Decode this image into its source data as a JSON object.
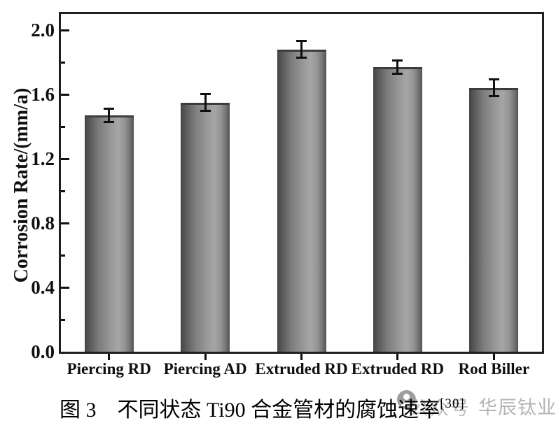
{
  "chart_data": {
    "type": "bar",
    "title": "",
    "categories": [
      "Piercing RD",
      "Piercing AD",
      "Extruded RD",
      "Extruded RD",
      "Rod Biller"
    ],
    "values": [
      1.47,
      1.55,
      1.88,
      1.77,
      1.64
    ],
    "errors": [
      0.04,
      0.05,
      0.05,
      0.04,
      0.05
    ],
    "xlabel": "",
    "ylabel": "Corrosion Rate/(mm/a)",
    "ylim": [
      0.0,
      2.1
    ],
    "yticks": [
      0.0,
      0.4,
      0.8,
      1.2,
      1.6,
      2.0
    ],
    "ytick_labels": [
      "0.0",
      "0.4",
      "0.8",
      "1.2",
      "1.6",
      "2.0"
    ],
    "minor_ytick_step": 0.2,
    "grid": false,
    "legend_position": "none",
    "bar_gradient": [
      "#424242",
      "#a6a6a6",
      "#525252"
    ],
    "bar_top_edge_color": "#3c3c3c",
    "error_bar_color": "#101010",
    "axis_color": "#1f1f1f",
    "plot_background": "#fefefe"
  },
  "caption": {
    "text": "图 3　不同状态 Ti90 合金管材的腐蚀速率",
    "reference_superscript": "[30]"
  },
  "watermark": {
    "logo": "person-in-circle-icon",
    "prefix": "公众号",
    "name": "华辰钛业",
    "circle_color": "#9d9d9d",
    "text_color": "#b5b5b5"
  }
}
